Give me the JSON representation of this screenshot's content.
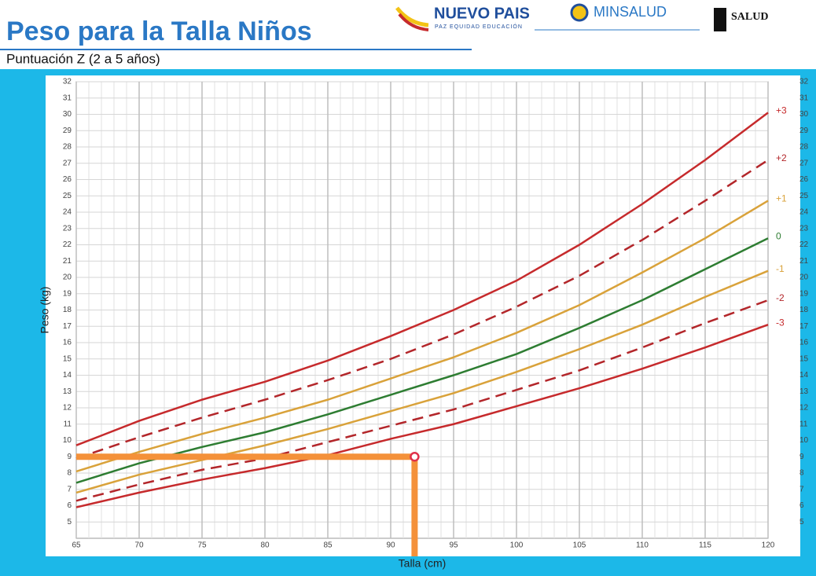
{
  "logos": [
    "NUEVO PAIS",
    "PAZ EQUIDAD EDUCACIÓN",
    "MINSALUD",
    "SALUD"
  ],
  "chart_data": {
    "type": "line",
    "title": "Peso para la Talla Niños",
    "subtitle": "Puntuación Z (2 a 5 años)",
    "x_label": "Talla (cm)",
    "y_label": "Peso (kg)",
    "x": [
      65,
      70,
      75,
      80,
      85,
      90,
      95,
      100,
      105,
      110,
      115,
      120
    ],
    "series": [
      {
        "name": "+3",
        "color": "#c62a2c",
        "dashed": false,
        "values": [
          9.7,
          11.2,
          12.5,
          13.6,
          14.9,
          16.4,
          18.0,
          19.8,
          22.0,
          24.5,
          27.2,
          30.1
        ]
      },
      {
        "name": "+2",
        "color": "#b3262a",
        "dashed": true,
        "values": [
          8.9,
          10.2,
          11.4,
          12.5,
          13.7,
          15.0,
          16.5,
          18.2,
          20.1,
          22.3,
          24.7,
          27.2
        ]
      },
      {
        "name": "+1",
        "color": "#d9a23a",
        "dashed": false,
        "values": [
          8.1,
          9.3,
          10.4,
          11.4,
          12.5,
          13.8,
          15.1,
          16.6,
          18.3,
          20.3,
          22.4,
          24.7
        ]
      },
      {
        "name": "0",
        "color": "#2e7d32",
        "dashed": false,
        "values": [
          7.4,
          8.6,
          9.6,
          10.5,
          11.6,
          12.8,
          14.0,
          15.3,
          16.9,
          18.6,
          20.5,
          22.4
        ]
      },
      {
        "name": "-1",
        "color": "#d9a23a",
        "dashed": false,
        "values": [
          6.8,
          7.9,
          8.8,
          9.7,
          10.7,
          11.8,
          12.9,
          14.2,
          15.6,
          17.1,
          18.8,
          20.4
        ]
      },
      {
        "name": "-2",
        "color": "#b3262a",
        "dashed": true,
        "values": [
          6.3,
          7.3,
          8.2,
          8.9,
          9.9,
          10.9,
          11.9,
          13.1,
          14.3,
          15.7,
          17.2,
          18.6
        ]
      },
      {
        "name": "-3",
        "color": "#c62a2c",
        "dashed": false,
        "values": [
          5.9,
          6.8,
          7.6,
          8.3,
          9.1,
          10.1,
          11.0,
          12.1,
          13.2,
          14.4,
          15.7,
          17.1
        ]
      }
    ],
    "xlim": [
      65,
      120
    ],
    "xticks": [
      65,
      70,
      75,
      80,
      85,
      90,
      95,
      100,
      105,
      110,
      115,
      120
    ],
    "ylim": [
      4,
      32
    ],
    "yticks": [
      5,
      6,
      7,
      8,
      9,
      10,
      11,
      12,
      13,
      14,
      15,
      16,
      17,
      18,
      19,
      20,
      21,
      22,
      23,
      24,
      25,
      26,
      27,
      28,
      29,
      30,
      31,
      32
    ],
    "grid": true,
    "marker": {
      "x": 91.9,
      "y": 9.0,
      "color": "#f4913a"
    }
  }
}
